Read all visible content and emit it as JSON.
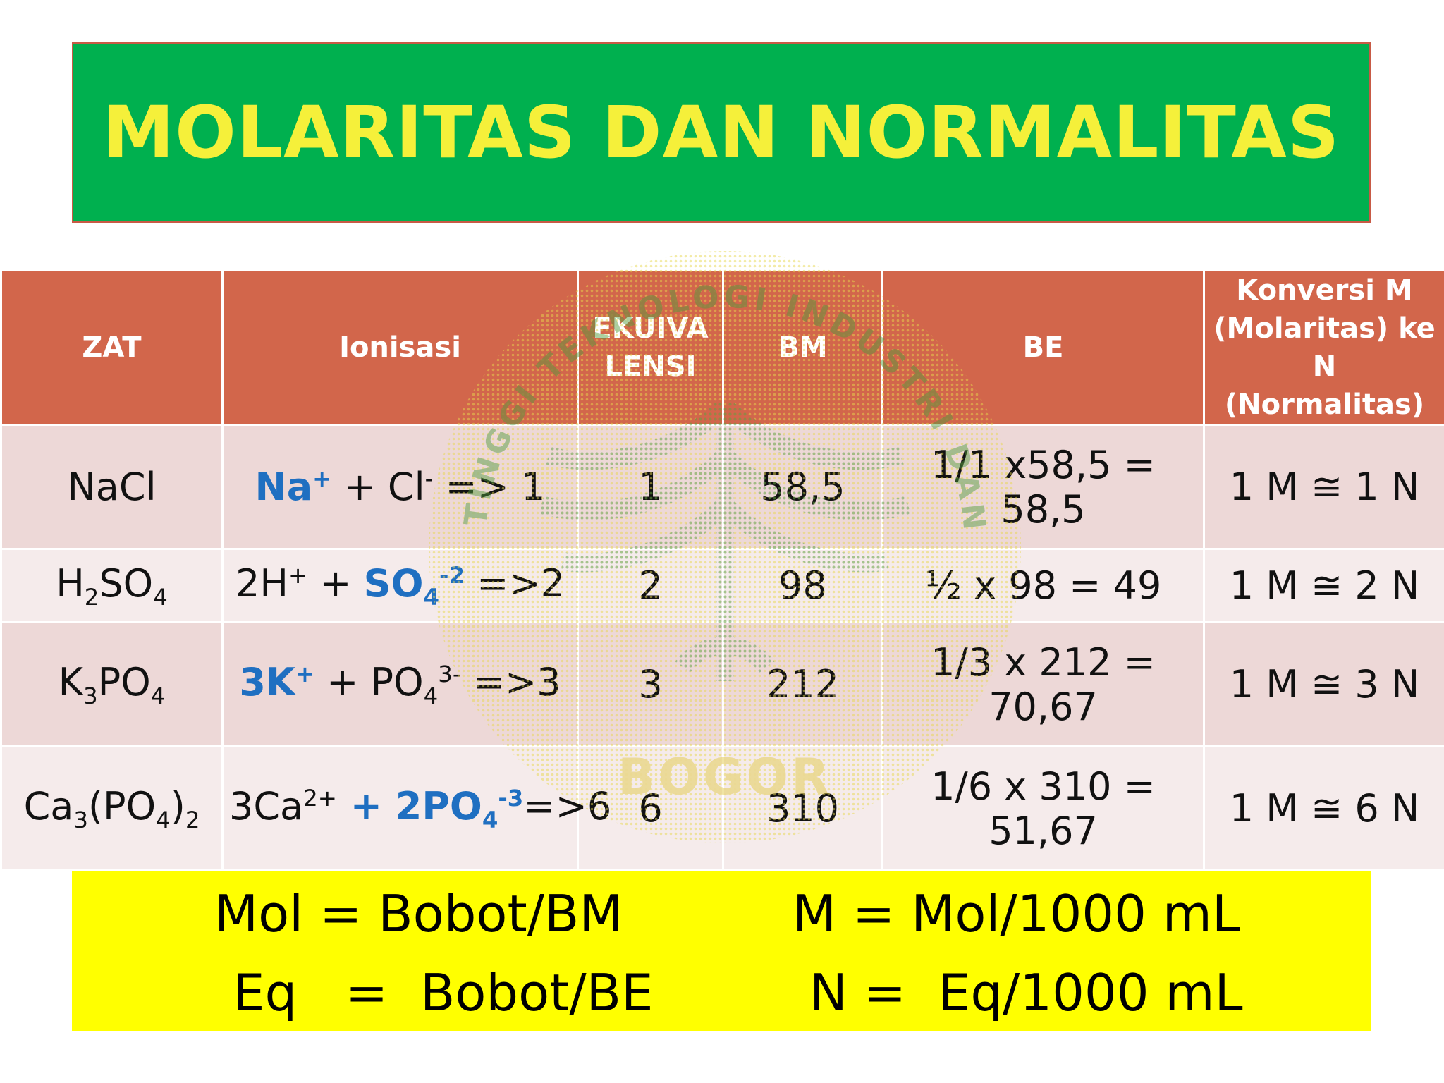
{
  "title": "MOLARITAS DAN NORMALITAS",
  "table": {
    "headers": {
      "zat": "ZAT",
      "ionisasi": "Ionisasi",
      "ekuivalensi_line1": "EKUIVA",
      "ekuivalensi_line2": "LENSI",
      "bm": "BM",
      "be": "BE",
      "konversi_line1": "Konversi M",
      "konversi_line2": "(Molaritas) ke",
      "konversi_line3": "N (Normalitas)"
    },
    "rows": [
      {
        "zat_a": "NaCl",
        "ion_a": "Na",
        "ion_a_sup": "+",
        "ion_b": " + Cl",
        "ion_b_sup": "-",
        "ion_c": " => 1",
        "ekuivalensi": "1",
        "bm": "58,5",
        "be_line1": "1/1 x58,5 =",
        "be_line2": "58,5",
        "konversi": "1 M ≅ 1 N"
      },
      {
        "zat_a": "H",
        "zat_sub1": "2",
        "zat_b": "SO",
        "zat_sub2": "4",
        "ion_a": "2H",
        "ion_a_sup": "+",
        "ion_b": " + ",
        "ion_c": "SO",
        "ion_c_sub": "4",
        "ion_c_sup": "-2",
        "ion_d": " =>2",
        "ekuivalensi": "2",
        "bm": "98",
        "be_line1": "½ x 98 = 49",
        "konversi": "1 M ≅ 2 N"
      },
      {
        "zat_a": "K",
        "zat_sub1": "3",
        "zat_b": "PO",
        "zat_sub2": "4",
        "ion_a": "3K",
        "ion_a_sup": "+",
        "ion_b": " + PO",
        "ion_b_sub": "4",
        "ion_b_sup": "3-",
        "ion_c": " =>3",
        "ekuivalensi": "3",
        "bm": "212",
        "be_line1": "1/3 x 212 =",
        "be_line2": "70,67",
        "konversi": "1 M ≅ 3 N"
      },
      {
        "zat_a": "Ca",
        "zat_sub1": "3",
        "zat_b": "(PO",
        "zat_sub2": "4",
        "zat_c": ")",
        "zat_sub3": "2",
        "ion_a": "3Ca",
        "ion_a_sup": "2+",
        "ion_b": " + 2PO",
        "ion_b_sub": "4",
        "ion_b_sup": "-3",
        "ion_c": "=>6",
        "ekuivalensi": "6",
        "bm": "310",
        "be_line1": "1/6 x 310 =",
        "be_line2": "51,67",
        "konversi": "1 M ≅ 6 N"
      }
    ]
  },
  "watermark": {
    "top_text": "SEKOLAH TINGGI TEKNOLOGI INDUSTRI DAN FARMASI",
    "bottom_text": "BOGOR",
    "color": "#4f9a3c"
  },
  "formulas": {
    "mol": "Mol = Bobot/BM",
    "m": "M = Mol/1000 mL",
    "eq": "Eq   =  Bobot/BE",
    "n": "N =  Eq/1000 mL"
  }
}
